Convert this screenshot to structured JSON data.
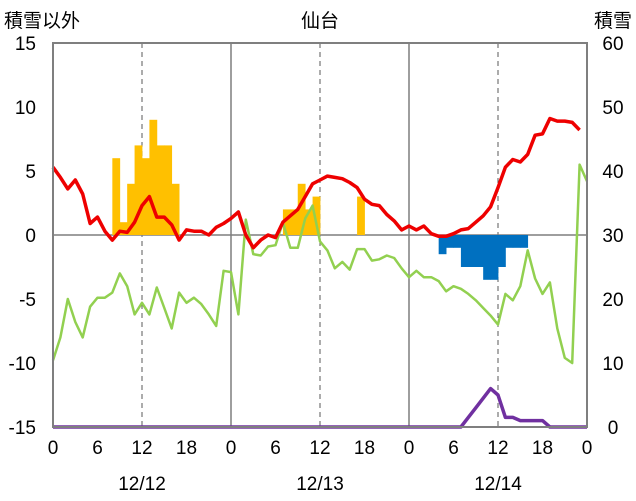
{
  "chart_data": {
    "type": "combo",
    "title": "仙台",
    "left_axis": {
      "label": "積雪以外",
      "ylim": [
        -15,
        15
      ],
      "ticks": [
        15,
        10,
        5,
        0,
        -5,
        -10,
        -15
      ]
    },
    "right_axis": {
      "label": "積雪",
      "ylim": [
        0,
        60
      ],
      "ticks": [
        60,
        50,
        40,
        30,
        20,
        10,
        0
      ]
    },
    "x": {
      "range_hours": [
        0,
        72
      ],
      "tick_labels": [
        "0",
        "6",
        "12",
        "18",
        "0",
        "6",
        "12",
        "18",
        "0",
        "6",
        "12",
        "18",
        "0"
      ],
      "dates": [
        "12/12",
        "12/13",
        "12/14"
      ],
      "dashed_gridlines_at": [
        12,
        36,
        60
      ],
      "solid_gridlines_at": [
        24,
        48
      ]
    },
    "colors": {
      "red": "#ee0000",
      "green": "#92d050",
      "purple": "#7030a0",
      "orange_bars": "#ffc000",
      "blue_bars": "#0070c0",
      "frame": "#7f7f7f"
    },
    "series": [
      {
        "color": "red",
        "type": "line",
        "axis": "left",
        "points": [
          [
            0,
            5.3
          ],
          [
            1,
            4.5
          ],
          [
            2,
            3.6
          ],
          [
            3,
            4.3
          ],
          [
            4,
            3.2
          ],
          [
            5,
            0.9
          ],
          [
            6,
            1.4
          ],
          [
            7,
            0.3
          ],
          [
            8,
            -0.4
          ],
          [
            9,
            0.3
          ],
          [
            10,
            0.2
          ],
          [
            11,
            1.0
          ],
          [
            12,
            2.3
          ],
          [
            13,
            3.0
          ],
          [
            14,
            1.4
          ],
          [
            15,
            1.4
          ],
          [
            16,
            0.8
          ],
          [
            17,
            -0.4
          ],
          [
            18,
            0.4
          ],
          [
            19,
            0.3
          ],
          [
            20,
            0.3
          ],
          [
            21,
            0.0
          ],
          [
            22,
            0.6
          ],
          [
            23,
            0.9
          ],
          [
            24,
            1.3
          ],
          [
            25,
            1.8
          ],
          [
            26,
            0.0
          ],
          [
            27,
            -1.0
          ],
          [
            28,
            -0.4
          ],
          [
            29,
            0.0
          ],
          [
            30,
            -0.2
          ],
          [
            31,
            1.0
          ],
          [
            32,
            1.5
          ],
          [
            33,
            2.0
          ],
          [
            34,
            3.0
          ],
          [
            35,
            4.0
          ],
          [
            36,
            4.3
          ],
          [
            37,
            4.6
          ],
          [
            38,
            4.5
          ],
          [
            39,
            4.4
          ],
          [
            40,
            4.1
          ],
          [
            41,
            3.7
          ],
          [
            42,
            2.8
          ],
          [
            43,
            2.4
          ],
          [
            44,
            2.3
          ],
          [
            45,
            1.6
          ],
          [
            46,
            1.1
          ],
          [
            47,
            0.4
          ],
          [
            48,
            0.7
          ],
          [
            49,
            0.4
          ],
          [
            50,
            0.7
          ],
          [
            51,
            0.1
          ],
          [
            52,
            -0.1
          ],
          [
            53,
            -0.1
          ],
          [
            54,
            0.1
          ],
          [
            55,
            0.4
          ],
          [
            56,
            0.5
          ],
          [
            57,
            1.0
          ],
          [
            58,
            1.5
          ],
          [
            59,
            2.2
          ],
          [
            60,
            3.7
          ],
          [
            61,
            5.3
          ],
          [
            62,
            5.9
          ],
          [
            63,
            5.7
          ],
          [
            64,
            6.3
          ],
          [
            65,
            7.8
          ],
          [
            66,
            7.9
          ],
          [
            67,
            9.1
          ],
          [
            68,
            8.9
          ],
          [
            69,
            8.9
          ],
          [
            70,
            8.8
          ],
          [
            71,
            8.2
          ]
        ]
      },
      {
        "color": "green",
        "type": "line",
        "axis": "left",
        "points": [
          [
            0,
            -9.8
          ],
          [
            1,
            -8.0
          ],
          [
            2,
            -5.0
          ],
          [
            3,
            -6.8
          ],
          [
            4,
            -8.0
          ],
          [
            5,
            -5.6
          ],
          [
            6,
            -4.9
          ],
          [
            7,
            -4.9
          ],
          [
            8,
            -4.5
          ],
          [
            9,
            -3.0
          ],
          [
            10,
            -4.0
          ],
          [
            11,
            -6.2
          ],
          [
            12,
            -5.3
          ],
          [
            13,
            -6.2
          ],
          [
            14,
            -4.1
          ],
          [
            15,
            -5.7
          ],
          [
            16,
            -7.3
          ],
          [
            17,
            -4.5
          ],
          [
            18,
            -5.3
          ],
          [
            19,
            -4.9
          ],
          [
            20,
            -5.4
          ],
          [
            21,
            -6.2
          ],
          [
            22,
            -7.1
          ],
          [
            23,
            -2.8
          ],
          [
            24,
            -2.9
          ],
          [
            25,
            -6.2
          ],
          [
            26,
            1.2
          ],
          [
            27,
            -1.5
          ],
          [
            28,
            -1.6
          ],
          [
            29,
            -0.9
          ],
          [
            30,
            -0.8
          ],
          [
            31,
            1.0
          ],
          [
            32,
            -1.0
          ],
          [
            33,
            -1.0
          ],
          [
            34,
            1.3
          ],
          [
            35,
            2.3
          ],
          [
            36,
            -0.5
          ],
          [
            37,
            -1.2
          ],
          [
            38,
            -2.6
          ],
          [
            39,
            -2.1
          ],
          [
            40,
            -2.7
          ],
          [
            41,
            -1.1
          ],
          [
            42,
            -1.1
          ],
          [
            43,
            -2.0
          ],
          [
            44,
            -1.9
          ],
          [
            45,
            -1.6
          ],
          [
            46,
            -1.8
          ],
          [
            47,
            -2.6
          ],
          [
            48,
            -3.3
          ],
          [
            49,
            -2.8
          ],
          [
            50,
            -3.3
          ],
          [
            51,
            -3.3
          ],
          [
            52,
            -3.6
          ],
          [
            53,
            -4.4
          ],
          [
            54,
            -4.0
          ],
          [
            55,
            -4.2
          ],
          [
            56,
            -4.6
          ],
          [
            57,
            -5.1
          ],
          [
            58,
            -5.7
          ],
          [
            59,
            -6.3
          ],
          [
            60,
            -7.0
          ],
          [
            61,
            -4.6
          ],
          [
            62,
            -5.1
          ],
          [
            63,
            -4.0
          ],
          [
            64,
            -1.2
          ],
          [
            65,
            -3.4
          ],
          [
            66,
            -4.6
          ],
          [
            67,
            -3.7
          ],
          [
            68,
            -7.3
          ],
          [
            69,
            -9.6
          ],
          [
            70,
            -10.0
          ],
          [
            71,
            5.5
          ],
          [
            72,
            4.2
          ]
        ]
      },
      {
        "color": "purple",
        "type": "line",
        "axis": "right",
        "points": [
          [
            0,
            0
          ],
          [
            55,
            0
          ],
          [
            56,
            1.5
          ],
          [
            57,
            3.0
          ],
          [
            58,
            4.5
          ],
          [
            59,
            6.0
          ],
          [
            60,
            5.0
          ],
          [
            61,
            1.5
          ],
          [
            62,
            1.5
          ],
          [
            63,
            1.0
          ],
          [
            64,
            1.0
          ],
          [
            65,
            1.0
          ],
          [
            66,
            1.0
          ],
          [
            67,
            0
          ],
          [
            72,
            0
          ]
        ]
      }
    ],
    "bars": [
      {
        "color": "orange_bars",
        "axis": "left",
        "comment_units": "bar top value, baseline 0",
        "values": [
          [
            8,
            6
          ],
          [
            9,
            1
          ],
          [
            10,
            4
          ],
          [
            11,
            7
          ],
          [
            12,
            6
          ],
          [
            13,
            9
          ],
          [
            14,
            7
          ],
          [
            15,
            7
          ],
          [
            16,
            4
          ],
          [
            31,
            2
          ],
          [
            32,
            2
          ],
          [
            33,
            4
          ],
          [
            34,
            2
          ],
          [
            35,
            3
          ],
          [
            41,
            3
          ]
        ]
      },
      {
        "color": "blue_bars",
        "axis": "left",
        "comment_units": "bar bottom value, top 0",
        "values": [
          [
            52,
            -1.5
          ],
          [
            53,
            -1
          ],
          [
            54,
            -1
          ],
          [
            55,
            -2.5
          ],
          [
            56,
            -2.5
          ],
          [
            57,
            -2.5
          ],
          [
            58,
            -3.5
          ],
          [
            59,
            -3.5
          ],
          [
            60,
            -2.5
          ],
          [
            61,
            -1
          ],
          [
            62,
            -1
          ],
          [
            63,
            -1
          ]
        ]
      }
    ]
  }
}
